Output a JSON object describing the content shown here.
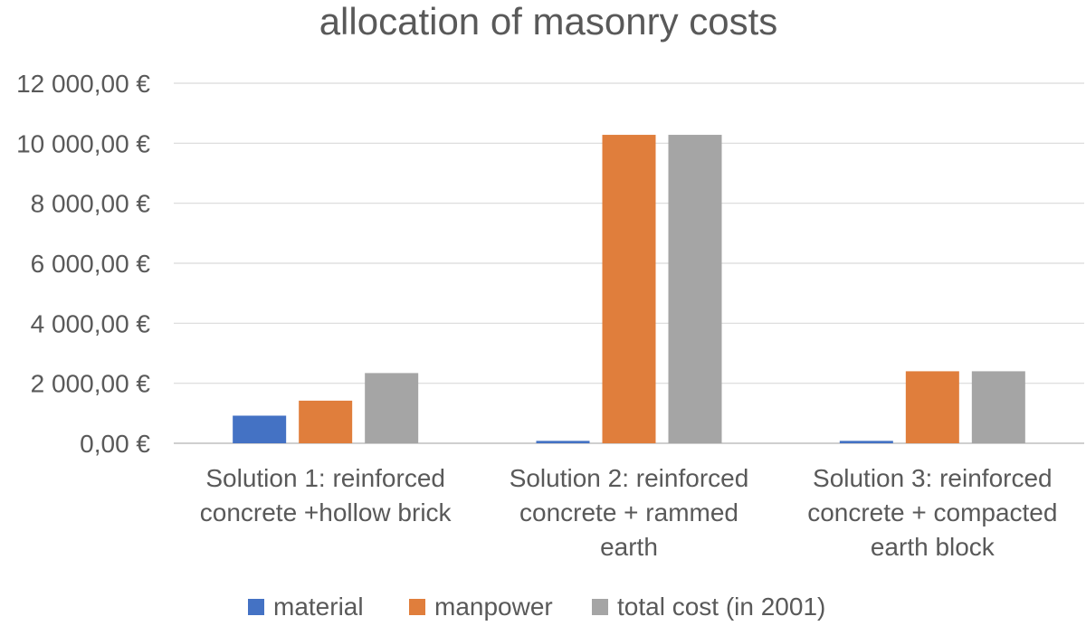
{
  "chart_data": {
    "type": "bar",
    "title": "allocation of masonry costs",
    "categories": [
      [
        "Solution 1: reinforced",
        "concrete +hollow brick"
      ],
      [
        "Solution 2: reinforced",
        "concrete + rammed",
        "earth"
      ],
      [
        "Solution 3: reinforced",
        "concrete + compacted",
        "earth block"
      ]
    ],
    "series": [
      {
        "name": "material",
        "color": "#4472C4",
        "values": [
          920,
          80,
          80
        ]
      },
      {
        "name": "manpower",
        "color": "#E07E3C",
        "values": [
          1420,
          10280,
          2400
        ]
      },
      {
        "name": "total cost (in 2001)",
        "color": "#A5A5A5",
        "values": [
          2340,
          10280,
          2400
        ]
      }
    ],
    "y_ticks": [
      "0,00 €",
      "2 000,00 €",
      "4 000,00 €",
      "6 000,00 €",
      "8 000,00 €",
      "10 000,00 €",
      "12 000,00 €"
    ],
    "y_tick_values": [
      0,
      2000,
      4000,
      6000,
      8000,
      10000,
      12000
    ],
    "ylim": [
      0,
      12000
    ],
    "grid": true,
    "legend": "bottom"
  }
}
